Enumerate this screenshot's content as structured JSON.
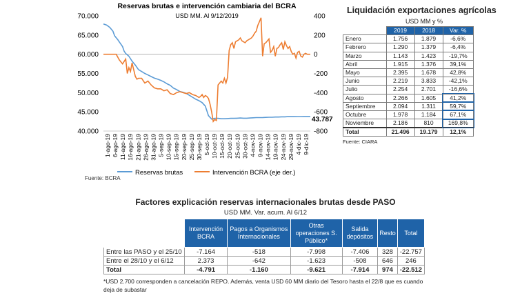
{
  "chart_data": {
    "type": "line",
    "title": "Reservas brutas e intervención cambiaria del BCRA",
    "subtitle": "USD MM. Al 9/12/2019",
    "x_ticks": [
      "1-ago-19",
      "6-ago-19",
      "11-ago-19",
      "16-ago-19",
      "21-ago-19",
      "26-ago-19",
      "31-ago-19",
      "5-sep-19",
      "10-sep-19",
      "15-sep-19",
      "20-sep-19",
      "25-sep-19",
      "30-sep-19",
      "5-oct-19",
      "10-oct-19",
      "15-oct-19",
      "20-oct-19",
      "25-oct-19",
      "30-oct-19",
      "4-nov-19",
      "9-nov-19",
      "14-nov-19",
      "19-nov-19",
      "24-nov-19",
      "29-nov-19",
      "4-dic-19",
      "9-dic-19"
    ],
    "y_left": {
      "min": 40000,
      "max": 70000,
      "ticks": [
        "40.000",
        "45.000",
        "50.000",
        "55.000",
        "60.000",
        "65.000",
        "70.000"
      ]
    },
    "y_right": {
      "min": -800,
      "max": 400,
      "ticks": [
        "-800",
        "-600",
        "-400",
        "-200",
        "0",
        "200",
        "400"
      ]
    },
    "last_value_label": "43.787",
    "series": [
      {
        "name": "Reservas brutas",
        "color": "#5b9bd5",
        "axis": "left",
        "x": [
          0,
          2,
          4,
          5,
          6,
          7,
          8,
          9,
          10,
          11,
          12,
          13,
          14,
          16,
          18,
          20,
          22,
          24,
          26,
          28,
          30,
          32,
          34,
          36,
          38,
          40,
          42,
          44,
          46,
          48,
          50,
          52,
          54,
          56,
          58,
          60,
          62,
          64,
          66,
          68,
          70,
          72,
          74,
          76,
          78,
          80,
          82,
          84,
          86,
          88,
          90,
          92,
          94,
          96,
          98,
          100,
          102,
          104,
          106,
          108,
          110,
          112,
          114,
          116,
          118,
          120,
          122,
          124,
          126,
          128,
          130
        ],
        "values": [
          67900,
          67600,
          67000,
          66500,
          66000,
          64800,
          64300,
          63800,
          63200,
          62600,
          62000,
          60800,
          60200,
          59500,
          58200,
          57200,
          56000,
          55500,
          55000,
          54600,
          54200,
          53800,
          53500,
          53200,
          52800,
          52300,
          51900,
          51200,
          50800,
          50300,
          50100,
          49800,
          49300,
          48800,
          48300,
          47900,
          47400,
          46500,
          44000,
          43100,
          43300,
          43300,
          43200,
          43200,
          43250,
          43300,
          43300,
          43350,
          43400,
          43350,
          43350,
          43400,
          43450,
          43500,
          43500,
          43500,
          43550,
          43600,
          43600,
          43650,
          43650,
          43700,
          43700,
          43750,
          43750,
          43750,
          43780,
          43780,
          43787,
          43787,
          43787
        ]
      },
      {
        "name": "Intervención BCRA (eje der.)",
        "color": "#ed7d31",
        "axis": "right",
        "x": [
          0,
          6,
          8,
          10,
          12,
          14,
          15,
          16,
          17,
          18,
          20,
          21,
          22,
          24,
          26,
          28,
          30,
          32,
          34,
          36,
          38,
          40,
          42,
          44,
          46,
          48,
          50,
          52,
          54,
          56,
          58,
          60,
          61,
          62,
          63,
          64,
          65,
          66,
          67,
          68,
          69,
          70,
          71,
          72,
          73,
          74,
          75,
          76,
          77,
          78,
          79,
          80,
          81,
          82,
          83,
          84,
          85,
          86,
          87,
          88,
          89,
          90,
          91,
          92,
          93,
          94,
          95,
          96,
          97,
          98,
          99,
          100,
          101,
          102,
          103,
          104,
          105,
          106,
          107,
          108,
          109,
          110,
          111,
          112,
          113,
          114,
          115,
          116,
          117,
          118,
          119,
          120,
          121,
          122,
          123,
          124,
          125,
          126,
          127,
          128,
          130
        ],
        "values": [
          0,
          0,
          0,
          -60,
          -100,
          -50,
          -200,
          -140,
          -180,
          -90,
          -230,
          -260,
          -250,
          -250,
          -300,
          -280,
          -320,
          -350,
          -360,
          -360,
          -380,
          -370,
          -410,
          -420,
          -400,
          -390,
          -400,
          -410,
          -400,
          -420,
          -430,
          -450,
          -440,
          -420,
          -450,
          -430,
          -440,
          -460,
          -520,
          -600,
          -700,
          -680,
          -690,
          -320,
          -300,
          -280,
          -300,
          -250,
          -300,
          -240,
          40,
          100,
          120,
          60,
          130,
          140,
          150,
          170,
          140,
          130,
          120,
          140,
          150,
          160,
          170,
          190,
          220,
          240,
          300,
          340,
          380,
          -20,
          110,
          120,
          140,
          160,
          20,
          40,
          80,
          -20,
          60,
          70,
          100,
          120,
          50,
          130,
          90,
          60,
          80,
          30,
          0,
          10,
          -40,
          20,
          30,
          -20,
          -30,
          0,
          10,
          0,
          0
        ]
      }
    ],
    "source": "Fuente: BCRA"
  },
  "liquidacion": {
    "title": "Liquidación exportaciones agrícolas",
    "subtitle": "USD MM y %",
    "headers": [
      "",
      "2019",
      "2018",
      "Var. %"
    ],
    "rows": [
      {
        "mes": "Enero",
        "y2019": "1.756",
        "y2018": "1.879",
        "var": "-6,6%"
      },
      {
        "mes": "Febrero",
        "y2019": "1.290",
        "y2018": "1.379",
        "var": "-6,4%"
      },
      {
        "mes": "Marzo",
        "y2019": "1.143",
        "y2018": "1.423",
        "var": "-19,7%"
      },
      {
        "mes": "Abril",
        "y2019": "1.915",
        "y2018": "1.376",
        "var": "39,1%"
      },
      {
        "mes": "Mayo",
        "y2019": "2.395",
        "y2018": "1.678",
        "var": "42,8%"
      },
      {
        "mes": "Junio",
        "y2019": "2.219",
        "y2018": "3.833",
        "var": "-42,1%"
      },
      {
        "mes": "Julio",
        "y2019": "2.254",
        "y2018": "2.701",
        "var": "-16,6%"
      },
      {
        "mes": "Agosto",
        "y2019": "2.266",
        "y2018": "1.605",
        "var": "41,2%"
      },
      {
        "mes": "Septiembre",
        "y2019": "2.094",
        "y2018": "1.311",
        "var": "59,7%"
      },
      {
        "mes": "Octubre",
        "y2019": "1.978",
        "y2018": "1.184",
        "var": "67,1%"
      },
      {
        "mes": "Noviembre",
        "y2019": "2.186",
        "y2018": "810",
        "var": "169,8%"
      }
    ],
    "total": {
      "mes": "Total",
      "y2019": "21.496",
      "y2018": "19.179",
      "var": "12,1%"
    },
    "source": "Fuente: CIARA"
  },
  "factores": {
    "title": "Factores explicación reservas internacionales brutas desde PASO",
    "subtitle": "USD MM. Var. acum. Al 6/12",
    "headers": [
      "",
      "Intervención BCRA",
      "Pagos a Organismos Internacionales",
      "Otras operaciones S. Público*",
      "Salida depósitos",
      "Resto",
      "Total"
    ],
    "rows": [
      {
        "label": "Entre las PASO y el 25/10",
        "c1": "-7.164",
        "c2": "-518",
        "c3": "-7.998",
        "c4": "-7.406",
        "c5": "328",
        "c6": "-22.757"
      },
      {
        "label": "Entre el 28/10 y el 6/12",
        "c1": "2.373",
        "c2": "-642",
        "c3": "-1.623",
        "c4": "-508",
        "c5": "646",
        "c6": "246"
      },
      {
        "label": "Total",
        "c1": "-4.791",
        "c2": "-1.160",
        "c3": "-9.621",
        "c4": "-7.914",
        "c5": "974",
        "c6": "-22.512"
      }
    ],
    "note1": "*USD 2.700 corresponden a cancelación REPO. Además, venta USD 60 MM diario del Tesoro hasta el 22/8 que es cuando",
    "note2": "deja de subastar",
    "source": "Fuente: BCRA"
  }
}
